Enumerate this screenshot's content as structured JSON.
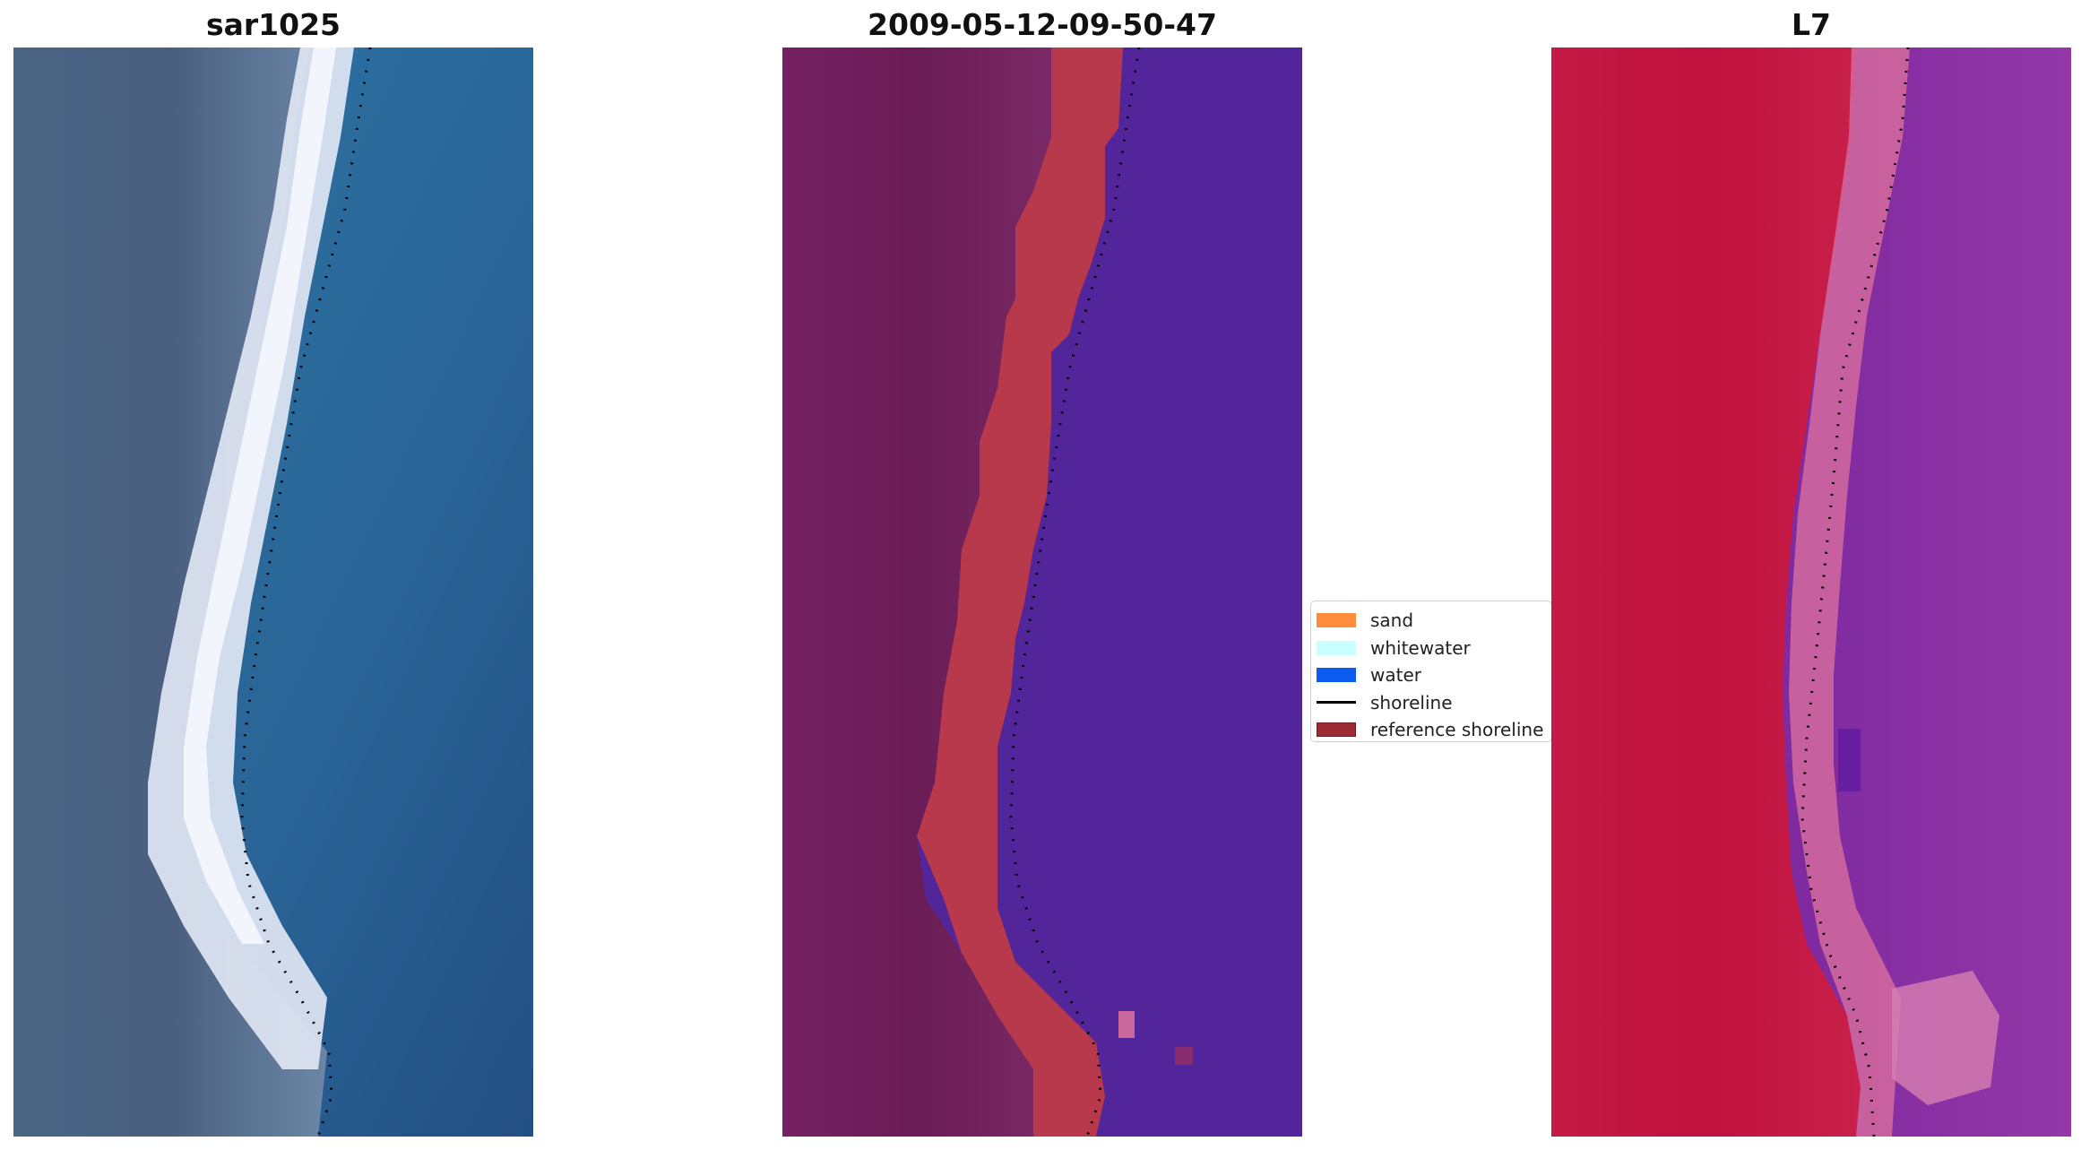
{
  "panels": [
    {
      "title": "sar1025"
    },
    {
      "title": "2009-05-12-09-50-47"
    },
    {
      "title": "L7"
    }
  ],
  "legend": {
    "items": [
      {
        "label": "sand",
        "color": "#ff8c3a"
      },
      {
        "label": "whitewater",
        "color": "#c8ffff"
      },
      {
        "label": "water",
        "color": "#0a5bf0"
      },
      {
        "label": "shoreline",
        "color": "#000000"
      },
      {
        "label": "reference shoreline",
        "color": "#9b2c33"
      }
    ]
  },
  "colors": {
    "rgb_land": "#3e5a7a",
    "rgb_surf": "#e8ecf6",
    "rgb_water": "#2a6797",
    "class_land": "#6e1e58",
    "class_sand": "#b8394b",
    "class_water": "#52259a",
    "swir_land": "#c01842",
    "swir_edge": "#d36a9e",
    "swir_water": "#8a2ea6"
  }
}
